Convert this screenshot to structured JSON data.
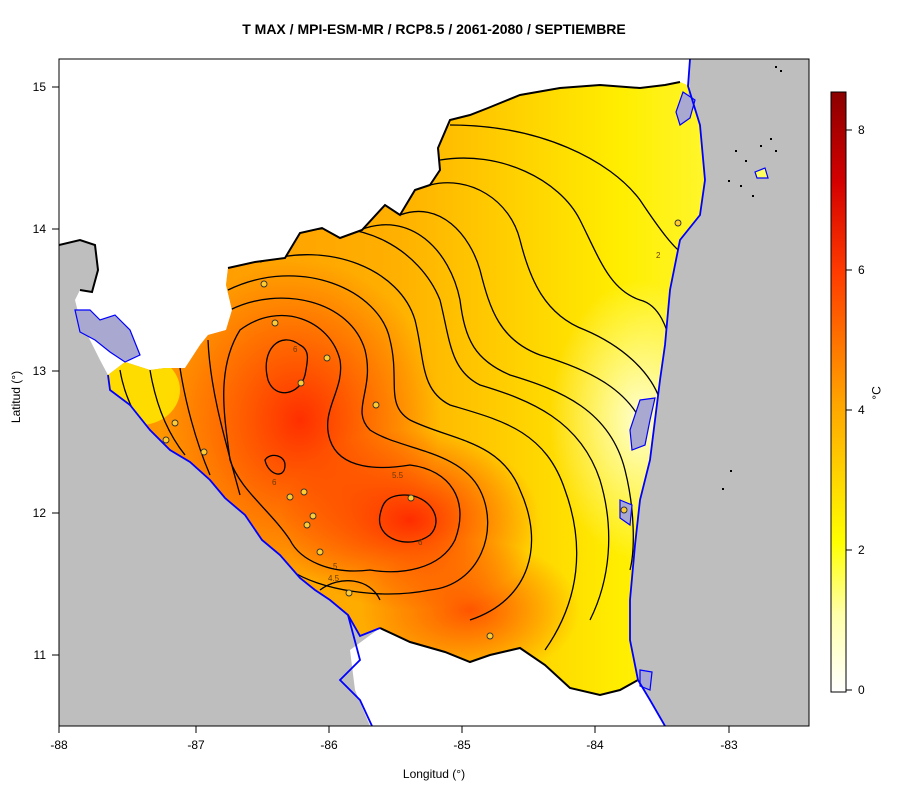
{
  "title": "T MAX / MPI-ESM-MR / RCP8.5 / 2061-2080 / SEPTIEMBRE",
  "x_axis": {
    "label": "Longitud (°)",
    "ticks": [
      "-88",
      "-87",
      "-86",
      "-85",
      "-84",
      "-83"
    ]
  },
  "y_axis": {
    "label": "Latitud (°)",
    "ticks": [
      "11",
      "12",
      "13",
      "14",
      "15"
    ]
  },
  "colorbar": {
    "unit": "°C",
    "ticks": [
      "0",
      "2",
      "4",
      "6",
      "8"
    ],
    "range": [
      -0.2,
      8.6
    ],
    "colors": [
      "#ffffff",
      "#ffffaa",
      "#ffff00",
      "#ffa500",
      "#ff3b00",
      "#cc0000",
      "#8b0000"
    ]
  },
  "contour_labels": [
    "5.5",
    "5",
    "4.5",
    "6",
    "6",
    "6",
    "2"
  ],
  "colors": {
    "ocean_land": "#bebebe",
    "coastline": "#0000ff",
    "lake": "#a8a8d0",
    "border": "#000000"
  }
}
